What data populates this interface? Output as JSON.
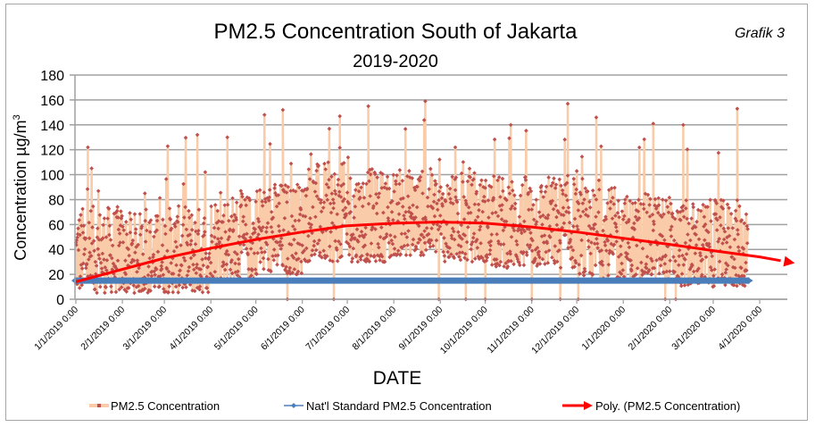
{
  "chart_data": {
    "type": "line",
    "title": "PM2.5 Concentration South of Jakarta",
    "subtitle": "2019-2020",
    "tag": "Grafik 3",
    "xlabel": "DATE",
    "ylabel": "Concentration µg/m³",
    "ylabel_base": "Concentration µg/m",
    "ylabel_sup": "3",
    "ylim": [
      0,
      180
    ],
    "yticks": [
      0,
      20,
      40,
      60,
      80,
      100,
      120,
      140,
      160,
      180
    ],
    "x_range": [
      "1/1/2019 0:00",
      "4/20/2020 0:00"
    ],
    "xticks": [
      "1/1/2019 0:00",
      "2/1/2019 0:00",
      "3/1/2019 0:00",
      "4/1/2019 0:00",
      "5/1/2019 0:00",
      "6/1/2019 0:00",
      "7/1/2019 0:00",
      "8/1/2019 0:00",
      "9/1/2019 0:00",
      "10/1/2019 0:00",
      "11/1/2019 0:00",
      "12/1/2019 0:00",
      "1/1/2020 0:00",
      "2/1/2020 0:00",
      "3/1/2020 0:00",
      "4/1/2020 0:00"
    ],
    "xtick_day_offsets": [
      0,
      31,
      59,
      90,
      120,
      151,
      181,
      212,
      243,
      273,
      304,
      334,
      365,
      396,
      425,
      456
    ],
    "x_max_day": 475,
    "grid": true,
    "legend_position": "bottom",
    "series": [
      {
        "name": "PM2.5 Concentration",
        "line_color": "#f9cba8",
        "marker_color": "#c0504d",
        "data_start": "1/1/2019 0:00",
        "data_end": "3/24/2020 0:00",
        "approx_hourly_range": [
          0,
          159
        ],
        "monthly_typical_range": [
          {
            "month": "2019-01",
            "low": 5,
            "high": 75,
            "peak": 122
          },
          {
            "month": "2019-02",
            "low": 5,
            "high": 70,
            "peak": 85
          },
          {
            "month": "2019-03",
            "low": 5,
            "high": 75,
            "peak": 132
          },
          {
            "month": "2019-04",
            "low": 15,
            "high": 85,
            "peak": 130
          },
          {
            "month": "2019-05",
            "low": 20,
            "high": 95,
            "peak": 152
          },
          {
            "month": "2019-06",
            "low": 30,
            "high": 110,
            "peak": 147
          },
          {
            "month": "2019-07",
            "low": 30,
            "high": 105,
            "peak": 155
          },
          {
            "month": "2019-08",
            "low": 35,
            "high": 105,
            "peak": 159
          },
          {
            "month": "2019-09",
            "low": 30,
            "high": 100,
            "peak": 122
          },
          {
            "month": "2019-10",
            "low": 25,
            "high": 100,
            "peak": 140
          },
          {
            "month": "2019-11",
            "low": 25,
            "high": 100,
            "peak": 157
          },
          {
            "month": "2019-12",
            "low": 15,
            "high": 90,
            "peak": 146
          },
          {
            "month": "2020-01",
            "low": 15,
            "high": 85,
            "peak": 141
          },
          {
            "month": "2020-02",
            "low": 10,
            "high": 80,
            "peak": 140
          },
          {
            "month": "2020-03",
            "low": 10,
            "high": 80,
            "peak": 153
          }
        ],
        "zero_dropout_days": [
          141,
          172,
          242,
          260,
          273,
          304,
          323,
          335,
          393,
          400
        ]
      },
      {
        "name": "Nat'l Standard PM2.5 Concentration",
        "color": "#4a7ebb",
        "constant_value": 15,
        "data_start": "1/1/2019 0:00",
        "data_end": "3/24/2020 0:00"
      },
      {
        "name": "Poly. (PM2.5 Concentration)",
        "color": "#ff0000",
        "type": "polynomial-trendline",
        "points": [
          {
            "day": 0,
            "value": 14
          },
          {
            "day": 31,
            "value": 24
          },
          {
            "day": 59,
            "value": 33
          },
          {
            "day": 90,
            "value": 41
          },
          {
            "day": 120,
            "value": 48
          },
          {
            "day": 151,
            "value": 54
          },
          {
            "day": 181,
            "value": 59
          },
          {
            "day": 212,
            "value": 61
          },
          {
            "day": 243,
            "value": 62
          },
          {
            "day": 273,
            "value": 61
          },
          {
            "day": 304,
            "value": 58
          },
          {
            "day": 334,
            "value": 54
          },
          {
            "day": 365,
            "value": 49
          },
          {
            "day": 396,
            "value": 44
          },
          {
            "day": 425,
            "value": 39
          },
          {
            "day": 456,
            "value": 34
          },
          {
            "day": 470,
            "value": 31
          }
        ]
      }
    ]
  }
}
